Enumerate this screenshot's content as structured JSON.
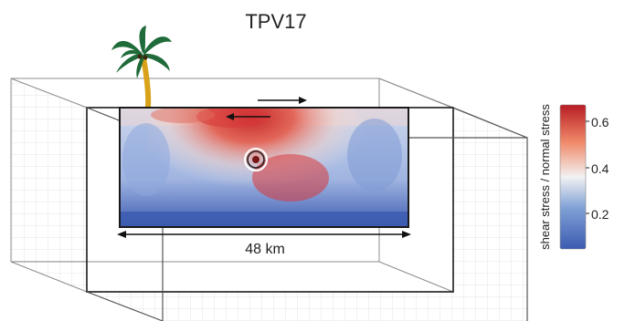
{
  "figure": {
    "title": "TPV17",
    "distance_label": "48 km",
    "colorbar": {
      "label": "shear stress / normal stress",
      "ticks": [
        "0.6",
        "0.4",
        "0.2"
      ],
      "colors": [
        "#3b5bb0",
        "#7f9fd6",
        "#f2f2f2",
        "#f08a6a",
        "#b81d24"
      ]
    },
    "icons": [
      "palm-tree-icon",
      "hypocenter-marker-icon"
    ],
    "colors": {
      "frame": "#1a1a1a",
      "grid": "#cfcfcf",
      "trunk": "#d9a21a",
      "leaves": "#1f6b3a"
    }
  }
}
